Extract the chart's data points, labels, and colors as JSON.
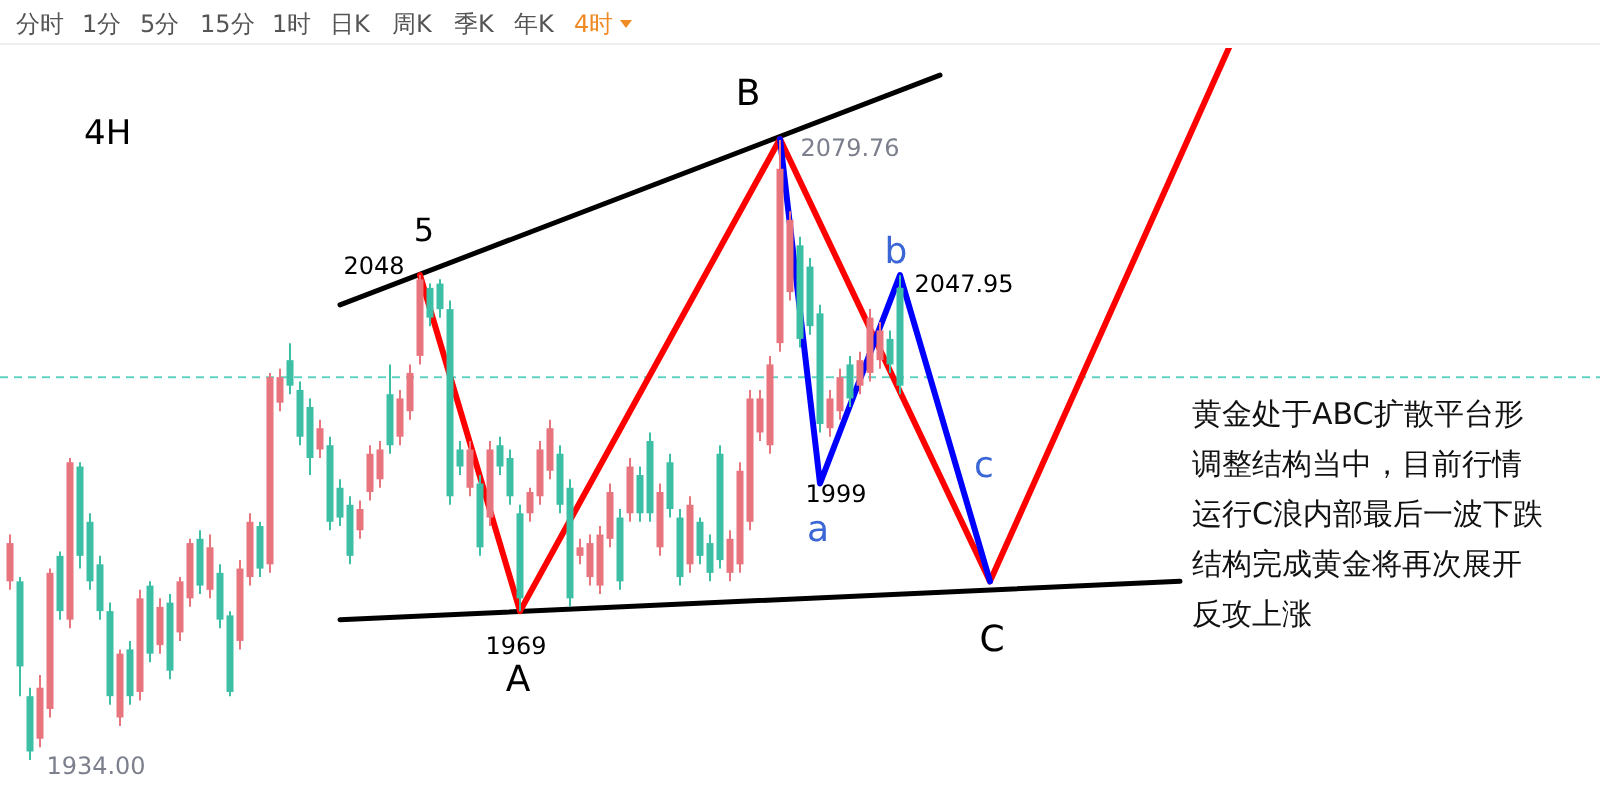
{
  "chart_data": {
    "type": "candlestick",
    "categories": [
      null,
      null,
      null,
      null,
      null,
      null,
      null,
      null,
      null,
      null,
      null,
      null,
      null,
      null,
      null,
      null,
      null,
      null,
      null,
      null,
      null,
      null,
      null,
      null,
      null,
      null,
      null,
      null,
      null,
      null,
      null,
      null,
      null,
      null,
      null,
      null,
      null,
      null,
      null,
      null,
      null,
      null,
      null,
      null,
      null,
      null,
      null,
      null,
      null,
      null,
      null,
      null,
      null,
      null,
      null,
      null,
      null,
      null,
      null,
      null,
      null,
      null,
      null,
      null,
      null,
      null,
      null,
      null,
      null,
      null,
      null,
      null,
      null,
      null,
      null,
      null,
      null,
      null,
      null,
      null,
      null,
      null,
      null,
      null,
      null,
      null,
      null,
      null,
      null,
      null,
      null,
      null,
      null,
      null,
      null,
      null,
      null,
      null,
      null,
      null,
      null,
      null,
      null,
      null,
      null,
      null,
      null,
      null,
      null,
      null,
      null,
      null,
      null,
      null,
      null,
      null,
      null,
      null,
      null,
      null,
      null,
      null,
      null,
      null
    ],
    "ohlc": [
      [
        1976,
        1987,
        1974,
        1985
      ],
      [
        1976,
        1977,
        1949,
        1956
      ],
      [
        1949,
        1951,
        1934.0,
        1936
      ],
      [
        1939,
        1954,
        1937,
        1951
      ],
      [
        1946,
        1979,
        1944,
        1978
      ],
      [
        1982,
        1983,
        1967,
        1969
      ],
      [
        1967,
        2005,
        1965,
        2004
      ],
      [
        2003,
        2004,
        1979,
        1982
      ],
      [
        1990,
        1992,
        1974,
        1976
      ],
      [
        1980,
        1982,
        1967,
        1969
      ],
      [
        1969,
        1971,
        1947,
        1949
      ],
      [
        1944,
        1960,
        1942,
        1959
      ],
      [
        1960,
        1962,
        1947,
        1949
      ],
      [
        1950,
        1974,
        1948,
        1972
      ],
      [
        1975,
        1976,
        1957,
        1959
      ],
      [
        1961,
        1972,
        1959,
        1970
      ],
      [
        1971,
        1973,
        1953,
        1955
      ],
      [
        1964,
        1977,
        1962,
        1976
      ],
      [
        1972,
        1986,
        1970,
        1985
      ],
      [
        1986,
        1988,
        1973,
        1975
      ],
      [
        1974,
        1987,
        1972,
        1984
      ],
      [
        1978,
        1980,
        1965,
        1967
      ],
      [
        1968,
        1969,
        1949,
        1950
      ],
      [
        1962,
        1981,
        1960,
        1979
      ],
      [
        1977,
        1992,
        1975,
        1990
      ],
      [
        1989,
        1990,
        1977,
        1979
      ],
      [
        1980,
        2025,
        1978,
        2024
      ],
      [
        2018,
        2026,
        2016,
        2024
      ],
      [
        2028,
        2032,
        2020,
        2022
      ],
      [
        2021,
        2023,
        2008,
        2010
      ],
      [
        2017,
        2019,
        2001,
        2005
      ],
      [
        2007,
        2014,
        2005,
        2012
      ],
      [
        2008,
        2010,
        1988,
        1990
      ],
      [
        1998,
        2000,
        1989,
        1991
      ],
      [
        1994,
        1996,
        1980,
        1982
      ],
      [
        1988,
        1995,
        1986,
        1993
      ],
      [
        1997,
        2008,
        1995,
        2006
      ],
      [
        2000,
        2009,
        1998,
        2007
      ],
      [
        2020,
        2027,
        2006,
        2008
      ],
      [
        2010,
        2021,
        2008,
        2019
      ],
      [
        2016,
        2027,
        2014,
        2025
      ],
      [
        2029,
        2048.0,
        2027,
        2047
      ],
      [
        2045,
        2046,
        2036,
        2038
      ],
      [
        2046,
        2047,
        2038,
        2040
      ],
      [
        2040,
        2042,
        1994,
        1996
      ],
      [
        2007,
        2009,
        2001,
        2003
      ],
      [
        1998,
        2009,
        1996,
        2007
      ],
      [
        1999,
        2001,
        1982,
        1984
      ],
      [
        1991,
        2009,
        1989,
        2007
      ],
      [
        2008,
        2010,
        2001,
        2003
      ],
      [
        2005,
        2007,
        1994,
        1996
      ],
      [
        1992,
        1994,
        1969,
        1972
      ],
      [
        1992,
        1998,
        1990,
        1997
      ],
      [
        1996,
        2009,
        1994,
        2007
      ],
      [
        2002,
        2014,
        2000,
        2012
      ],
      [
        2006,
        2008,
        1992,
        1994
      ],
      [
        1998,
        2000,
        1970,
        1972
      ],
      [
        1982,
        1986,
        1980,
        1984
      ],
      [
        1977,
        1987,
        1975,
        1985
      ],
      [
        1975,
        1989,
        1973,
        1987
      ],
      [
        1986,
        1999,
        1984,
        1997
      ],
      [
        1991,
        1993,
        1974,
        1976
      ],
      [
        1992,
        2005,
        1990,
        2003
      ],
      [
        2001,
        2003,
        1990,
        1992
      ],
      [
        2009,
        2011,
        1990,
        1992
      ],
      [
        1984,
        1999,
        1982,
        1997
      ],
      [
        2004,
        2006,
        1991,
        1993
      ],
      [
        1991,
        1993,
        1975,
        1977
      ],
      [
        1980,
        1996,
        1978,
        1994
      ],
      [
        1990,
        1991,
        1980,
        1982
      ],
      [
        1985,
        1987,
        1976,
        1978
      ],
      [
        2006,
        2008,
        1979,
        1981
      ],
      [
        1978,
        1988,
        1976,
        1986
      ],
      [
        1980,
        2004,
        1978,
        2002
      ],
      [
        1990,
        2021,
        1988,
        2019
      ],
      [
        2011,
        2021,
        2009,
        2019
      ],
      [
        2008,
        2029,
        2006,
        2027
      ],
      [
        2032,
        2079.76,
        2030,
        2073
      ],
      [
        2044,
        2063,
        2042,
        2061
      ],
      [
        2055,
        2057,
        2031,
        2033
      ],
      [
        2050,
        2052,
        2034,
        2036
      ],
      [
        2039,
        2041,
        2011,
        2013
      ],
      [
        2012,
        2021,
        2010,
        2019
      ],
      [
        2016,
        2026,
        2014,
        2024
      ],
      [
        2027,
        2029,
        2017,
        2019
      ],
      [
        2022,
        2030,
        2020,
        2028
      ],
      [
        2025,
        2040,
        2023,
        2038
      ],
      [
        2028,
        2037,
        2026,
        2035
      ],
      [
        2033,
        2035,
        2025,
        2027
      ],
      [
        2045,
        2047.95,
        2020,
        2022
      ],
      null,
      null,
      null,
      null,
      null,
      null,
      null,
      null,
      null,
      null,
      null,
      null,
      null,
      null,
      null,
      null,
      null,
      null,
      null,
      null,
      null,
      null,
      null,
      null,
      null,
      null,
      null,
      null,
      null,
      null,
      null,
      null,
      null,
      null
    ],
    "colors": [
      "#e8747e",
      "#3dbfa6",
      "#3dbfa6",
      "#e8747e",
      "#e8747e",
      "#3dbfa6",
      "#e8747e",
      "#3dbfa6",
      "#3dbfa6",
      "#3dbfa6",
      "#3dbfa6",
      "#e8747e",
      "#3dbfa6",
      "#e8747e",
      "#3dbfa6",
      "#e8747e",
      "#3dbfa6",
      "#e8747e",
      "#e8747e",
      "#3dbfa6",
      "#e8747e",
      "#3dbfa6",
      "#3dbfa6",
      "#e8747e",
      "#e8747e",
      "#3dbfa6",
      "#e8747e",
      "#e8747e",
      "#3dbfa6",
      "#3dbfa6",
      "#3dbfa6",
      "#e8747e",
      "#3dbfa6",
      "#3dbfa6",
      "#3dbfa6",
      "#e8747e",
      "#e8747e",
      "#e8747e",
      "#3dbfa6",
      "#e8747e",
      "#e8747e",
      "#e8747e",
      "#3dbfa6",
      "#3dbfa6",
      "#3dbfa6",
      "#3dbfa6",
      "#e8747e",
      "#3dbfa6",
      "#e8747e",
      "#3dbfa6",
      "#3dbfa6",
      "#3dbfa6",
      "#e8747e",
      "#e8747e",
      "#e8747e",
      "#3dbfa6",
      "#3dbfa6",
      "#e8747e",
      "#e8747e",
      "#e8747e",
      "#e8747e",
      "#3dbfa6",
      "#e8747e",
      "#3dbfa6",
      "#3dbfa6",
      "#e8747e",
      "#3dbfa6",
      "#3dbfa6",
      "#e8747e",
      "#3dbfa6",
      "#3dbfa6",
      "#3dbfa6",
      "#e8747e",
      "#e8747e",
      "#e8747e",
      "#e8747e",
      "#e8747e",
      "#e8747e",
      "#e8747e",
      "#3dbfa6",
      "#3dbfa6",
      "#3dbfa6",
      "#e8747e",
      "#e8747e",
      "#3dbfa6",
      "#e8747e",
      "#e8747e",
      "#e8747e",
      "#3dbfa6",
      "#3dbfa6",
      null,
      null,
      null,
      null,
      null,
      null,
      null,
      null,
      null,
      null,
      null,
      null,
      null,
      null,
      null,
      null,
      null,
      null,
      null,
      null,
      null,
      null,
      null,
      null,
      null,
      null,
      null,
      null,
      null,
      null,
      null,
      null,
      null,
      null
    ],
    "series": [
      {
        "type": "line",
        "color": "#000000",
        "values": [
          null,
          null,
          null,
          null,
          null,
          null,
          null,
          null,
          null,
          null,
          null,
          null,
          null,
          null,
          null,
          null,
          null,
          null,
          null,
          null,
          null,
          null,
          null,
          null,
          null,
          null,
          null,
          null,
          null,
          null,
          null,
          null,
          null,
          2041,
          null,
          null,
          null,
          null,
          null,
          null,
          null,
          null,
          null,
          null,
          null,
          null,
          null,
          null,
          null,
          null,
          null,
          null,
          null,
          null,
          null,
          null,
          null,
          null,
          null,
          null,
          null,
          null,
          null,
          null,
          null,
          null,
          null,
          null,
          null,
          null,
          null,
          null,
          null,
          null,
          null,
          null,
          null,
          null,
          null,
          null,
          null,
          null,
          null,
          null,
          null,
          null,
          null,
          null,
          null,
          null,
          null,
          null,
          null,
          2095,
          null,
          null,
          null,
          null,
          null,
          null,
          null,
          null,
          null,
          null,
          null,
          null,
          null,
          null,
          null,
          null,
          null,
          null,
          null,
          null,
          null,
          null,
          null,
          null,
          null,
          null,
          null,
          null,
          null,
          null
        ]
      },
      {
        "type": "line",
        "color": "#000000",
        "values": [
          null,
          null,
          null,
          null,
          null,
          null,
          null,
          null,
          null,
          null,
          null,
          null,
          null,
          null,
          null,
          null,
          null,
          null,
          null,
          null,
          null,
          null,
          null,
          null,
          null,
          null,
          null,
          null,
          null,
          null,
          null,
          null,
          null,
          1967,
          null,
          null,
          null,
          null,
          null,
          null,
          null,
          null,
          null,
          null,
          null,
          null,
          null,
          null,
          null,
          null,
          null,
          null,
          null,
          null,
          null,
          null,
          null,
          null,
          null,
          null,
          null,
          null,
          null,
          null,
          null,
          null,
          null,
          null,
          null,
          null,
          null,
          null,
          null,
          null,
          null,
          null,
          null,
          null,
          null,
          null,
          null,
          null,
          null,
          null,
          null,
          null,
          null,
          null,
          null,
          null,
          null,
          null,
          null,
          null,
          null,
          null,
          null,
          null,
          null,
          null,
          null,
          null,
          null,
          null,
          null,
          null,
          null,
          null,
          null,
          null,
          null,
          null,
          null,
          null,
          null,
          null,
          null,
          1976,
          null,
          null,
          null,
          null,
          null,
          null
        ]
      },
      {
        "type": "line",
        "color": "#ff0000",
        "values": [
          null,
          null,
          null,
          null,
          null,
          null,
          null,
          null,
          null,
          null,
          null,
          null,
          null,
          null,
          null,
          null,
          null,
          null,
          null,
          null,
          null,
          null,
          null,
          null,
          null,
          null,
          null,
          null,
          null,
          null,
          null,
          null,
          null,
          null,
          null,
          null,
          null,
          null,
          null,
          null,
          null,
          2048,
          null,
          null,
          null,
          null,
          null,
          null,
          null,
          null,
          null,
          1969,
          null,
          null,
          null,
          null,
          null,
          null,
          null,
          null,
          null,
          null,
          null,
          null,
          null,
          null,
          null,
          null,
          null,
          null,
          null,
          null,
          null,
          null,
          null,
          null,
          null,
          2080,
          null,
          null,
          null,
          null,
          null,
          null,
          null,
          null,
          null,
          null,
          null,
          null,
          null,
          null,
          null,
          null,
          null,
          null,
          null,
          null,
          1976,
          null,
          null,
          null,
          null,
          null,
          null,
          null,
          null,
          null,
          null,
          null,
          null,
          null,
          null,
          null,
          null,
          null,
          null,
          null,
          null,
          null,
          null,
          null,
          2102,
          null
        ]
      },
      {
        "type": "line",
        "color": "#0000ff",
        "values": [
          null,
          null,
          null,
          null,
          null,
          null,
          null,
          null,
          null,
          null,
          null,
          null,
          null,
          null,
          null,
          null,
          null,
          null,
          null,
          null,
          null,
          null,
          null,
          null,
          null,
          null,
          null,
          null,
          null,
          null,
          null,
          null,
          null,
          null,
          null,
          null,
          null,
          null,
          null,
          null,
          null,
          null,
          null,
          null,
          null,
          null,
          null,
          null,
          null,
          null,
          null,
          null,
          null,
          null,
          null,
          null,
          null,
          null,
          null,
          null,
          null,
          null,
          null,
          null,
          null,
          null,
          null,
          null,
          null,
          null,
          null,
          null,
          null,
          null,
          null,
          null,
          null,
          2080,
          null,
          null,
          null,
          1999,
          null,
          null,
          null,
          null,
          null,
          null,
          null,
          2048,
          null,
          null,
          null,
          null,
          null,
          null,
          null,
          null,
          1976,
          null,
          null,
          null,
          null,
          null,
          null,
          null,
          null,
          null,
          null,
          null,
          null,
          null,
          null,
          null,
          null,
          null,
          null,
          null,
          null,
          null,
          null,
          null,
          null,
          null
        ]
      }
    ],
    "ref_lines": [
      {
        "axis": "y",
        "value": 2024,
        "color": "#5fd3c2",
        "line_style": "dashed"
      }
    ],
    "annotations": [
      "分时",
      "1分",
      "5分",
      "15分",
      "1时",
      "日K",
      "周K",
      "季K",
      "年K",
      "4时",
      "4H",
      "黄金处于ABC扩散平台形调整结构当中，目前行情运行C浪内部最后一波下跌结构完成黄金将再次展开反攻上涨",
      "5",
      "B",
      "A",
      "C",
      "b",
      "a",
      "c",
      "2048",
      "2079.76",
      "2047.95",
      "1999",
      "1969",
      "1934.00"
    ]
  }
}
